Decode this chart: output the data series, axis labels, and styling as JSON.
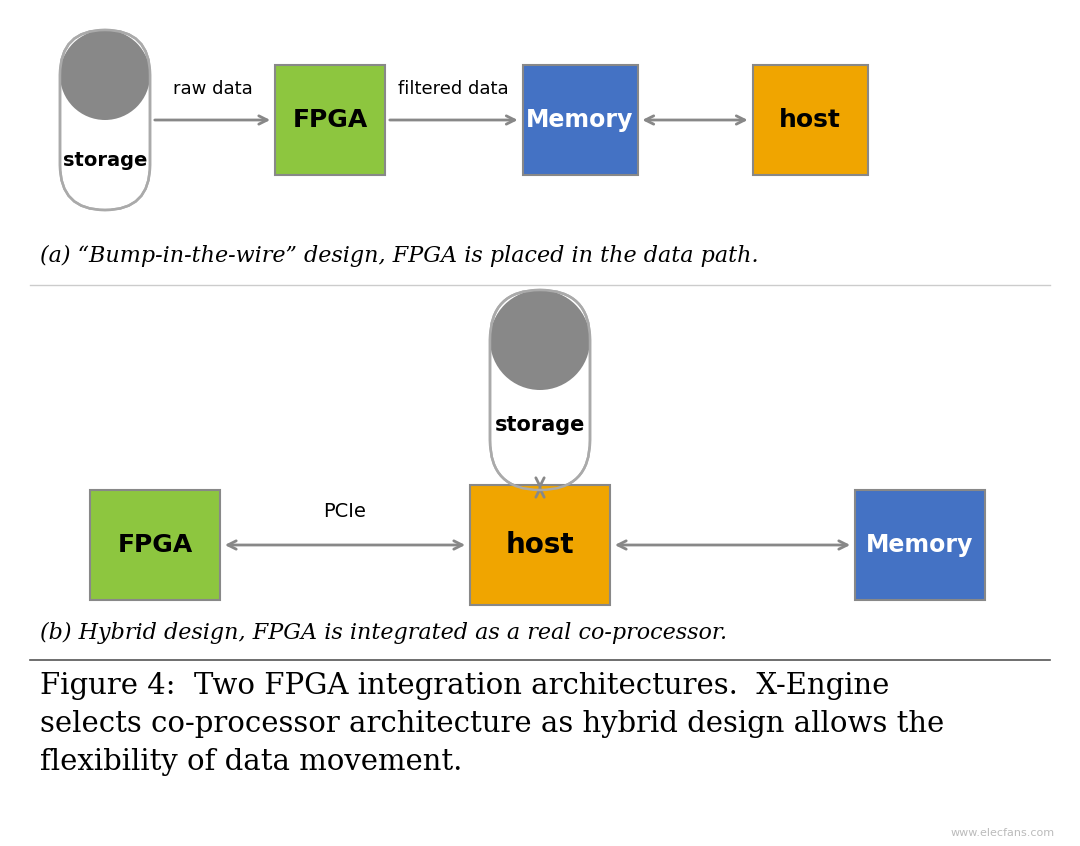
{
  "bg_color": "#ffffff",
  "fpga_color_a": "#8dc63f",
  "fpga_color_b": "#8dc63f",
  "memory_color_a": "#4472c4",
  "memory_color_b": "#4472c4",
  "host_color_a": "#f0a500",
  "host_color_b": "#f0a500",
  "arrow_color": "#888888",
  "cylinder_body": "#ffffff",
  "cylinder_top": "#888888",
  "cylinder_stroke": "#aaaaaa",
  "caption_a": "(a) “Bump-in-the-wire” design, FPGA is placed in the data path.",
  "caption_b": "(b) Hybrid design, FPGA is integrated as a real co-processor.",
  "figure_caption_line1": "Figure 4:  Two FPGA integration architectures.  X-Engine",
  "figure_caption_line2": "selects co-processor architecture as hybrid design allows the",
  "figure_caption_line3": "flexibility of data movement.",
  "watermark": "www.elecfans.com"
}
